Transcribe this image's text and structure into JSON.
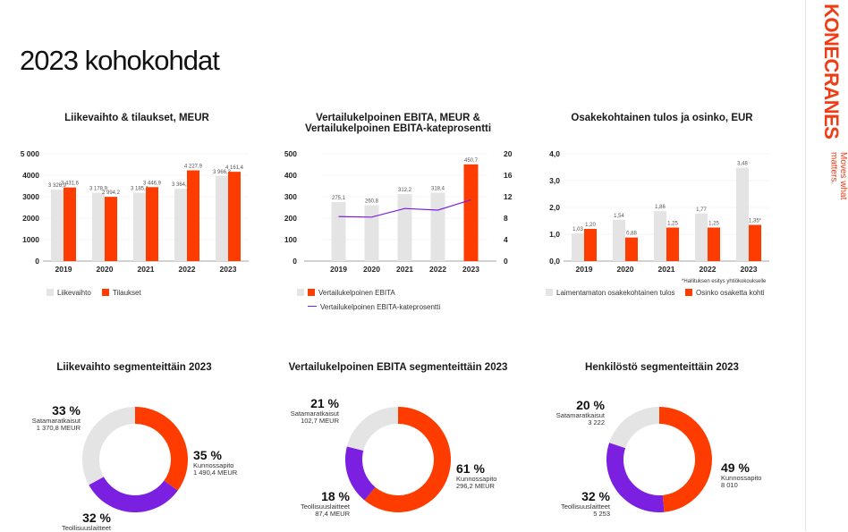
{
  "page": {
    "title": "2023 kohokohdat"
  },
  "brand": {
    "name": "KONECRANES",
    "tagline_line1": "Moves what",
    "tagline_line2": "matters."
  },
  "colors": {
    "accent": "#ff3c00",
    "grey": "#e4e4e4",
    "purple": "#7b1fe0",
    "axis": "#555555"
  },
  "chart_data": [
    {
      "id": "revenue",
      "type": "bar",
      "title": "Liikevaihto & tilaukset, MEUR",
      "categories": [
        "2019",
        "2020",
        "2021",
        "2022",
        "2023"
      ],
      "series": [
        {
          "name": "Liikevaihto",
          "values": [
            3326.9,
            3178.9,
            3185.1,
            3364.8,
            3966.3
          ],
          "labels": [
            "3 326,9",
            "3 178,9",
            "3 185,1",
            "3 364,8",
            "3 966,3"
          ]
        },
        {
          "name": "Tilaukset",
          "values": [
            3431.6,
            2994.2,
            3446.9,
            4227.9,
            4161.4
          ],
          "labels": [
            "3 431,6",
            "2 994,2",
            "3 446,9",
            "4 227,9",
            "4 161,4"
          ]
        }
      ],
      "ylim": [
        0,
        5000
      ],
      "yticks": [
        0,
        1000,
        2000,
        3000,
        4000,
        5000
      ],
      "ytick_labels": [
        "0",
        "1000",
        "2000",
        "3000",
        "4000",
        "5 000"
      ]
    },
    {
      "id": "ebita",
      "type": "bar+line",
      "title_line1": "Vertailukelpoinen EBITA, MEUR &",
      "title_line2": "Vertailukelpoinen EBITA-kateprosentti",
      "categories": [
        "2019",
        "2020",
        "2021",
        "2022",
        "2023"
      ],
      "bars": {
        "name": "Vertailukelpoinen EBITA",
        "values": [
          275.1,
          260.8,
          312.2,
          318.4,
          450.7
        ],
        "labels": [
          "275,1",
          "260,8",
          "312,2",
          "318,4",
          "450,7"
        ]
      },
      "line": {
        "name": "Vertailukelpoinen EBITA-kateprosentti",
        "values": [
          8.3,
          8.2,
          9.8,
          9.5,
          11.4
        ]
      },
      "ylim": [
        0,
        500
      ],
      "yticks": [
        0,
        100,
        200,
        300,
        400,
        500
      ],
      "ytick_labels": [
        "0",
        "100",
        "200",
        "300",
        "400",
        "500"
      ],
      "y2lim": [
        0,
        20
      ],
      "y2ticks": [
        0,
        4,
        8,
        12,
        16,
        20
      ],
      "y2tick_labels": [
        "0",
        "4",
        "8",
        "12",
        "16",
        "20"
      ]
    },
    {
      "id": "eps",
      "type": "bar",
      "title": "Osakekohtainen tulos ja osinko, EUR",
      "categories": [
        "2019",
        "2020",
        "2021",
        "2022",
        "2023"
      ],
      "series": [
        {
          "name": "Laimentamaton osakekohtainen tulos",
          "values": [
            1.03,
            1.54,
            1.86,
            1.77,
            3.48
          ],
          "labels": [
            "1,03",
            "1,54",
            "1,86",
            "1,77",
            "3,48"
          ]
        },
        {
          "name": "Osinko osaketta kohti",
          "values": [
            1.2,
            0.88,
            1.25,
            1.25,
            1.35
          ],
          "labels": [
            "1,20",
            "0,88",
            "1,25",
            "1,25",
            "1,35*"
          ]
        }
      ],
      "ylim": [
        0,
        4
      ],
      "yticks": [
        0,
        1,
        2,
        3,
        4
      ],
      "ytick_labels": [
        "0,0",
        "1,0",
        "2,0",
        "3,0",
        "4,0"
      ],
      "footnote": "*Hallituksen esitys yhtiökokoukselle"
    },
    {
      "id": "seg-revenue",
      "type": "pie",
      "title": "Liikevaihto segmenteittäin 2023",
      "segments": [
        {
          "name": "Kunnossapito",
          "percent": 35,
          "pct_label": "35 %",
          "value_label": "1 490,4 MEUR"
        },
        {
          "name": "Teollisuuslaitteet",
          "percent": 32,
          "pct_label": "32 %",
          "value_label": ""
        },
        {
          "name": "Satamaratkaisut",
          "percent": 33,
          "pct_label": "33 %",
          "value_label": "1 370,8 MEUR"
        }
      ]
    },
    {
      "id": "seg-ebita",
      "type": "pie",
      "title": "Vertailukelpoinen EBITA segmenteittäin 2023",
      "segments": [
        {
          "name": "Kunnossapito",
          "percent": 61,
          "pct_label": "61 %",
          "value_label": "296,2 MEUR"
        },
        {
          "name": "Teollisuuslaitteet",
          "percent": 18,
          "pct_label": "18 %",
          "value_label": "87,4 MEUR"
        },
        {
          "name": "Satamaratkaisut",
          "percent": 21,
          "pct_label": "21 %",
          "value_label": "102,7 MEUR"
        }
      ]
    },
    {
      "id": "seg-staff",
      "type": "pie",
      "title": "Henkilöstö segmenteittäin 2023",
      "segments": [
        {
          "name": "Kunnossapito",
          "percent": 49,
          "pct_label": "49 %",
          "value_label": "8 010"
        },
        {
          "name": "Teollisuuslaitteet",
          "percent": 32,
          "pct_label": "32 %",
          "value_label": "5 253"
        },
        {
          "name": "Satamaratkaisut",
          "percent": 20,
          "pct_label": "20 %",
          "value_label": "3 222"
        }
      ]
    }
  ]
}
